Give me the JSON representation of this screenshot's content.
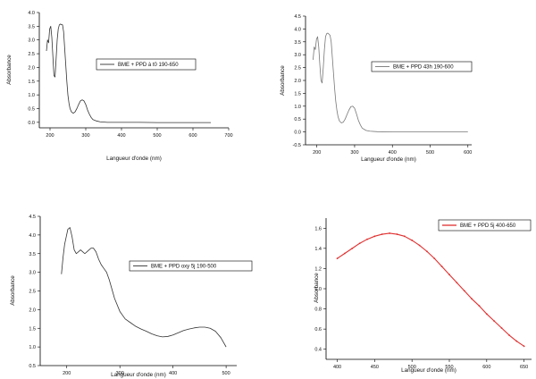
{
  "chart_data": [
    {
      "type": "line",
      "xlabel": "Langueur d'onde (nm)",
      "ylabel": "Absorbance",
      "xlim": [
        170,
        700
      ],
      "ylim": [
        -0.2,
        4.0
      ],
      "xticks": [
        200,
        300,
        400,
        500,
        600,
        700
      ],
      "yticks": [
        0.0,
        0.5,
        1.0,
        1.5,
        2.0,
        2.5,
        3.0,
        3.5,
        4.0
      ],
      "tick_format": "decimal-1",
      "legend_position": "top-right",
      "series": [
        {
          "name": "BME + PPD à t0 190-650",
          "color": "#333333",
          "x": [
            190,
            193,
            196,
            199,
            202,
            205,
            208,
            211,
            214,
            217,
            220,
            223,
            226,
            229,
            232,
            235,
            238,
            241,
            244,
            247,
            250,
            253,
            256,
            260,
            265,
            270,
            275,
            280,
            285,
            290,
            295,
            300,
            305,
            310,
            315,
            320,
            330,
            340,
            360,
            400,
            450,
            500,
            550,
            600,
            650
          ],
          "y": [
            2.6,
            3.0,
            2.9,
            3.4,
            3.5,
            3.1,
            2.4,
            1.7,
            1.65,
            2.3,
            3.0,
            3.4,
            3.55,
            3.58,
            3.56,
            3.55,
            3.3,
            2.7,
            2.1,
            1.5,
            1.0,
            0.7,
            0.5,
            0.38,
            0.33,
            0.38,
            0.5,
            0.65,
            0.78,
            0.82,
            0.78,
            0.65,
            0.45,
            0.3,
            0.18,
            0.1,
            0.05,
            0.02,
            0.0,
            0.0,
            0.0,
            -0.01,
            -0.01,
            -0.01,
            -0.01
          ]
        }
      ]
    },
    {
      "type": "line",
      "xlabel": "Langueur d'onde (nm)",
      "ylabel": "Absorbance",
      "xlim": [
        170,
        610
      ],
      "ylim": [
        -0.5,
        4.5
      ],
      "xticks": [
        200,
        300,
        400,
        500,
        600
      ],
      "yticks": [
        -0.5,
        0.0,
        0.5,
        1.0,
        1.5,
        2.0,
        2.5,
        3.0,
        3.5,
        4.0,
        4.5
      ],
      "tick_format": "decimal-1",
      "legend_position": "top-right",
      "series": [
        {
          "name": "BME + PPD 43h 190-600",
          "color": "#777777",
          "x": [
            190,
            193,
            196,
            199,
            202,
            205,
            208,
            211,
            214,
            217,
            220,
            223,
            226,
            229,
            232,
            235,
            238,
            241,
            244,
            247,
            250,
            253,
            256,
            260,
            265,
            270,
            275,
            280,
            285,
            290,
            295,
            300,
            305,
            310,
            315,
            320,
            330,
            340,
            360,
            400,
            450,
            500,
            550,
            600
          ],
          "y": [
            2.8,
            3.3,
            3.2,
            3.6,
            3.7,
            3.3,
            2.6,
            2.0,
            1.9,
            2.5,
            3.2,
            3.7,
            3.82,
            3.84,
            3.8,
            3.75,
            3.5,
            2.9,
            2.3,
            1.7,
            1.2,
            0.85,
            0.6,
            0.42,
            0.35,
            0.38,
            0.5,
            0.68,
            0.85,
            0.98,
            1.0,
            0.92,
            0.7,
            0.45,
            0.28,
            0.15,
            0.06,
            0.03,
            0.01,
            0.0,
            0.0,
            0.0,
            0.0,
            0.0
          ]
        }
      ]
    },
    {
      "type": "line",
      "xlabel": "Langueur d'onde (nm)",
      "ylabel": "Absorbance",
      "xlim": [
        150,
        520
      ],
      "ylim": [
        0.5,
        4.5
      ],
      "xticks": [
        200,
        300,
        400,
        500
      ],
      "yticks": [
        0.5,
        1.0,
        1.5,
        2.0,
        2.5,
        3.0,
        3.5,
        4.0,
        4.5
      ],
      "tick_format": "decimal-1",
      "legend_position": "top-right",
      "series": [
        {
          "name": "BME + PPD oxy 5j 190-500",
          "color": "#333333",
          "x": [
            190,
            193,
            196,
            199,
            202,
            206,
            210,
            214,
            218,
            222,
            226,
            230,
            234,
            238,
            242,
            246,
            250,
            255,
            260,
            265,
            270,
            275,
            280,
            290,
            300,
            310,
            320,
            330,
            340,
            350,
            360,
            370,
            380,
            390,
            400,
            410,
            420,
            430,
            440,
            450,
            460,
            470,
            480,
            490,
            500
          ],
          "y": [
            2.95,
            3.4,
            3.75,
            3.95,
            4.15,
            4.2,
            3.95,
            3.6,
            3.5,
            3.55,
            3.6,
            3.55,
            3.5,
            3.55,
            3.6,
            3.65,
            3.65,
            3.55,
            3.35,
            3.2,
            3.1,
            3.0,
            2.8,
            2.3,
            1.95,
            1.75,
            1.65,
            1.55,
            1.48,
            1.42,
            1.35,
            1.3,
            1.27,
            1.28,
            1.32,
            1.38,
            1.44,
            1.48,
            1.51,
            1.53,
            1.53,
            1.5,
            1.42,
            1.25,
            1.0
          ]
        }
      ]
    },
    {
      "type": "line",
      "xlabel": "Langueur d'onde (nm)",
      "ylabel": "Absorbance",
      "xlim": [
        385,
        660
      ],
      "ylim": [
        0.3,
        1.7
      ],
      "xticks": [
        400,
        450,
        500,
        550,
        600,
        650
      ],
      "yticks": [
        0.4,
        0.6,
        0.8,
        1.0,
        1.2,
        1.4,
        1.6
      ],
      "tick_format": "decimal-1",
      "legend_position": "top-right",
      "series": [
        {
          "name": "BME + PPD 5j 400-650",
          "color": "#e03030",
          "x": [
            400,
            410,
            420,
            430,
            440,
            450,
            460,
            470,
            480,
            490,
            500,
            510,
            520,
            530,
            540,
            550,
            560,
            570,
            580,
            590,
            600,
            610,
            620,
            630,
            640,
            650
          ],
          "y": [
            1.3,
            1.35,
            1.4,
            1.45,
            1.49,
            1.52,
            1.54,
            1.55,
            1.54,
            1.52,
            1.48,
            1.43,
            1.37,
            1.3,
            1.22,
            1.14,
            1.06,
            0.98,
            0.9,
            0.83,
            0.75,
            0.68,
            0.61,
            0.54,
            0.48,
            0.43
          ]
        }
      ]
    }
  ]
}
